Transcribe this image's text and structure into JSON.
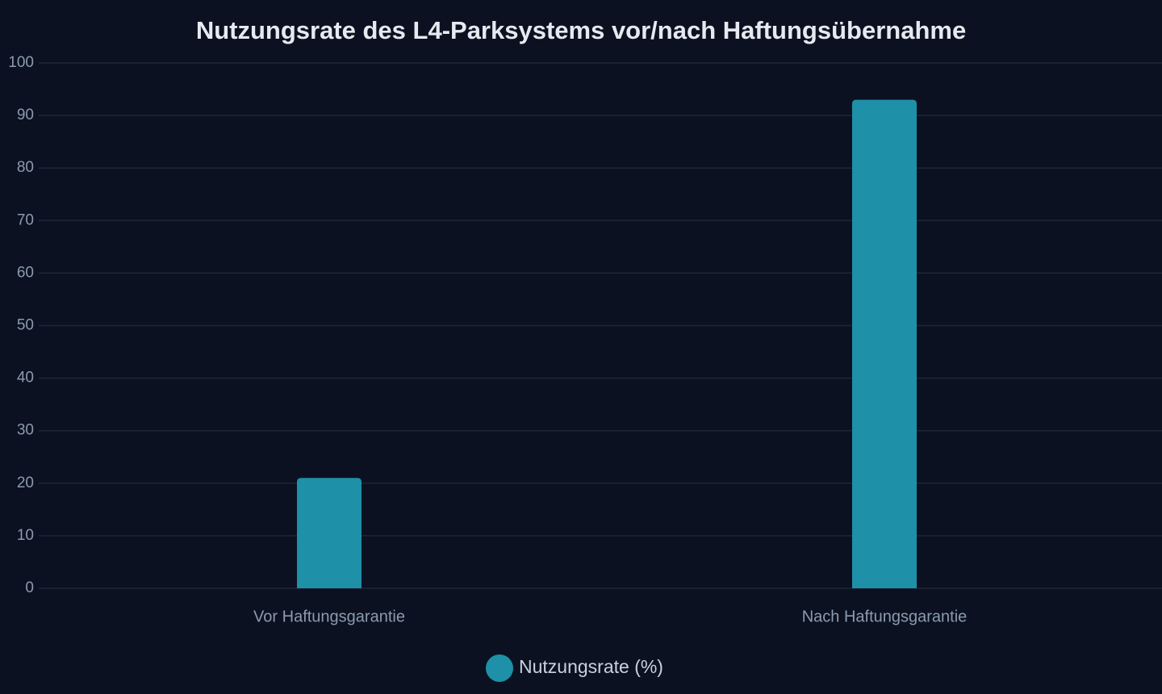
{
  "chart_data": {
    "type": "bar",
    "title": "Nutzungsrate des L4-Parksystems vor/nach Haftungsübernahme",
    "categories": [
      "Vor Haftungsgarantie",
      "Nach Haftungsgarantie"
    ],
    "series": [
      {
        "name": "Nutzungsrate (%)",
        "color": "#1e90a8",
        "values": [
          21,
          93
        ]
      }
    ],
    "ylim": [
      0,
      100
    ],
    "yticks": [
      0,
      10,
      20,
      30,
      40,
      50,
      60,
      70,
      80,
      90,
      100
    ],
    "grid": true,
    "legend": "bottom"
  }
}
